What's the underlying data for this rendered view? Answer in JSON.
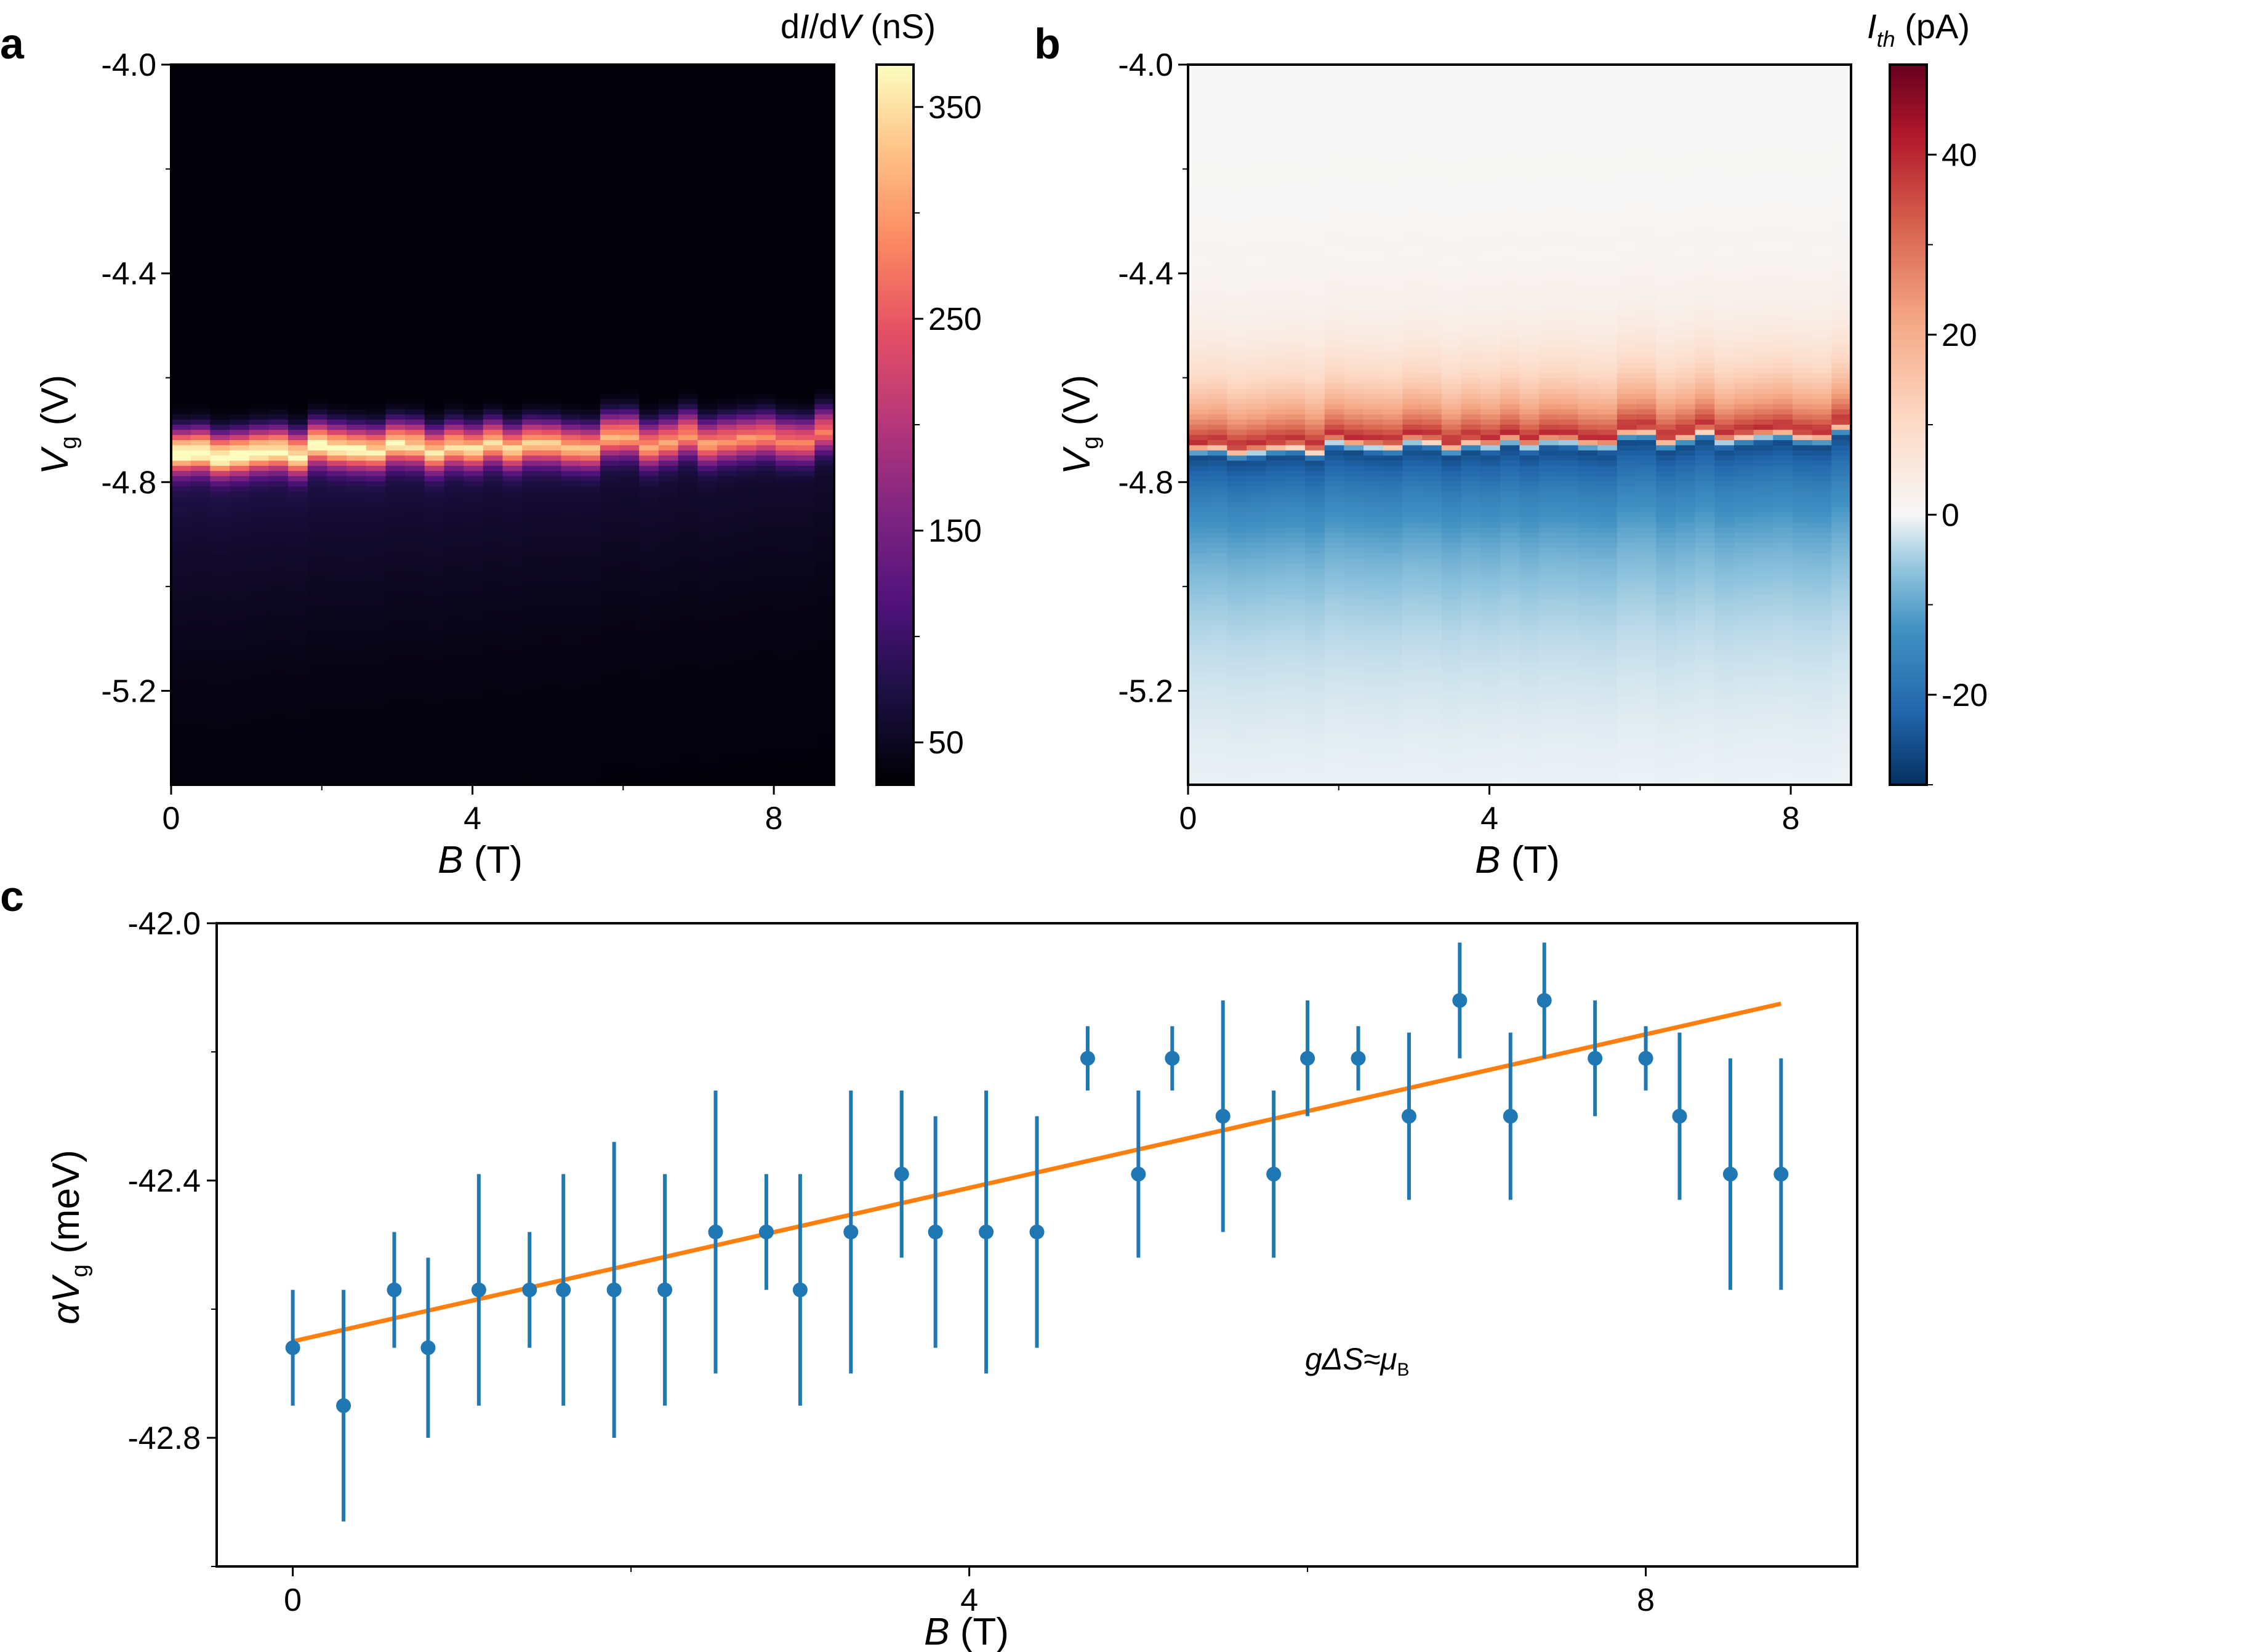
{
  "panels": {
    "a": {
      "letter": "a",
      "xlabel_var": "B",
      "xlabel_unit": " (T)",
      "ylabel_var": "V",
      "ylabel_sub": "g",
      "ylabel_unit": " (V)",
      "x_ticks": [
        "0",
        "4",
        "8"
      ],
      "y_ticks": [
        "-4.0",
        "-4.4",
        "-4.8",
        "-5.2"
      ],
      "colorbar": {
        "label_prefix": "d",
        "label_i": "I",
        "label_mid": "/d",
        "label_v": "V",
        "label_unit": " (nS)",
        "ticks": [
          "350",
          "250",
          "150",
          "50"
        ],
        "range": [
          30,
          370
        ],
        "colormap": "magma"
      }
    },
    "b": {
      "letter": "b",
      "xlabel_var": "B",
      "xlabel_unit": " (T)",
      "ylabel_var": "V",
      "ylabel_sub": "g",
      "ylabel_unit": " (V)",
      "x_ticks": [
        "0",
        "4",
        "8"
      ],
      "y_ticks": [
        "-4.0",
        "-4.4",
        "-4.8",
        "-5.2"
      ],
      "colorbar": {
        "label_var": "I",
        "label_sub": "th",
        "label_unit": " (pA)",
        "ticks": [
          "40",
          "20",
          "0",
          "-20"
        ],
        "range": [
          -30,
          50
        ],
        "colormap": "RdBu_r"
      }
    },
    "c": {
      "letter": "c",
      "xlabel_var": "B",
      "xlabel_unit": " (T)",
      "ylabel_greek": "α",
      "ylabel_var": "V",
      "ylabel_sub": "g",
      "ylabel_unit": " (meV)",
      "x_ticks": [
        "0",
        "4",
        "8"
      ],
      "y_ticks": [
        "-42.0",
        "-42.4",
        "-42.8"
      ],
      "annotation_main": "gΔS≈μ",
      "annotation_sub": "B"
    }
  },
  "chart_data": [
    {
      "type": "heatmap",
      "panel": "a",
      "title": "",
      "xlabel": "B (T)",
      "ylabel": "V_g (V)",
      "xlim": [
        0,
        8.8
      ],
      "ylim": [
        -5.38,
        -4.0
      ],
      "colorbar_label": "dI/dV (nS)",
      "colorbar_range": [
        30,
        370
      ],
      "description_values": {
        "background": 32,
        "peak_center_Vg_at_B0": -4.74,
        "peak_center_Vg_at_B8.8": -4.71,
        "peak_max_value": 360,
        "peak_width_V": 0.05
      }
    },
    {
      "type": "heatmap",
      "panel": "b",
      "title": "",
      "xlabel": "B (T)",
      "ylabel": "V_g (V)",
      "xlim": [
        0,
        8.8
      ],
      "ylim": [
        -5.38,
        -4.0
      ],
      "colorbar_label": "I_th (pA)",
      "colorbar_range": [
        -30,
        50
      ],
      "description_values": {
        "zero_crossing_Vg_at_B0": -4.74,
        "zero_crossing_Vg_at_B8.8": -4.71,
        "max_positive": 48,
        "max_negative": -28
      }
    },
    {
      "type": "scatter",
      "panel": "c",
      "title": "",
      "xlabel": "B (T)",
      "ylabel": "αV_g (meV)",
      "xlim": [
        -0.45,
        9.25
      ],
      "ylim": [
        -43.0,
        -42.0
      ],
      "series": [
        {
          "name": "data",
          "color": "#1f77b4",
          "x": [
            0.0,
            0.3,
            0.6,
            0.8,
            1.1,
            1.4,
            1.6,
            1.9,
            2.2,
            2.5,
            2.8,
            3.0,
            3.3,
            3.6,
            3.8,
            4.1,
            4.4,
            4.7,
            5.0,
            5.2,
            5.5,
            5.8,
            6.0,
            6.3,
            6.6,
            6.9,
            7.2,
            7.4,
            7.7,
            8.0,
            8.2,
            8.5,
            8.8
          ],
          "y": [
            -42.66,
            -42.75,
            -42.57,
            -42.66,
            -42.57,
            -42.57,
            -42.57,
            -42.57,
            -42.57,
            -42.48,
            -42.48,
            -42.57,
            -42.48,
            -42.39,
            -42.48,
            -42.48,
            -42.48,
            -42.21,
            -42.39,
            -42.21,
            -42.3,
            -42.39,
            -42.21,
            -42.21,
            -42.3,
            -42.12,
            -42.3,
            -42.12,
            -42.21,
            -42.21,
            -42.3,
            -42.39,
            -42.39
          ],
          "yerr": [
            0.09,
            0.18,
            0.09,
            0.14,
            0.18,
            0.09,
            0.18,
            0.23,
            0.18,
            0.22,
            0.09,
            0.18,
            0.22,
            0.13,
            0.18,
            0.22,
            0.18,
            0.05,
            0.13,
            0.05,
            0.18,
            0.13,
            0.09,
            0.05,
            0.13,
            0.09,
            0.13,
            0.09,
            0.09,
            0.05,
            0.13,
            0.18,
            0.18
          ]
        },
        {
          "name": "fit",
          "color": "#ff7f0e",
          "x": [
            0.0,
            8.8
          ],
          "y": [
            -42.65,
            -42.125
          ]
        }
      ]
    }
  ]
}
